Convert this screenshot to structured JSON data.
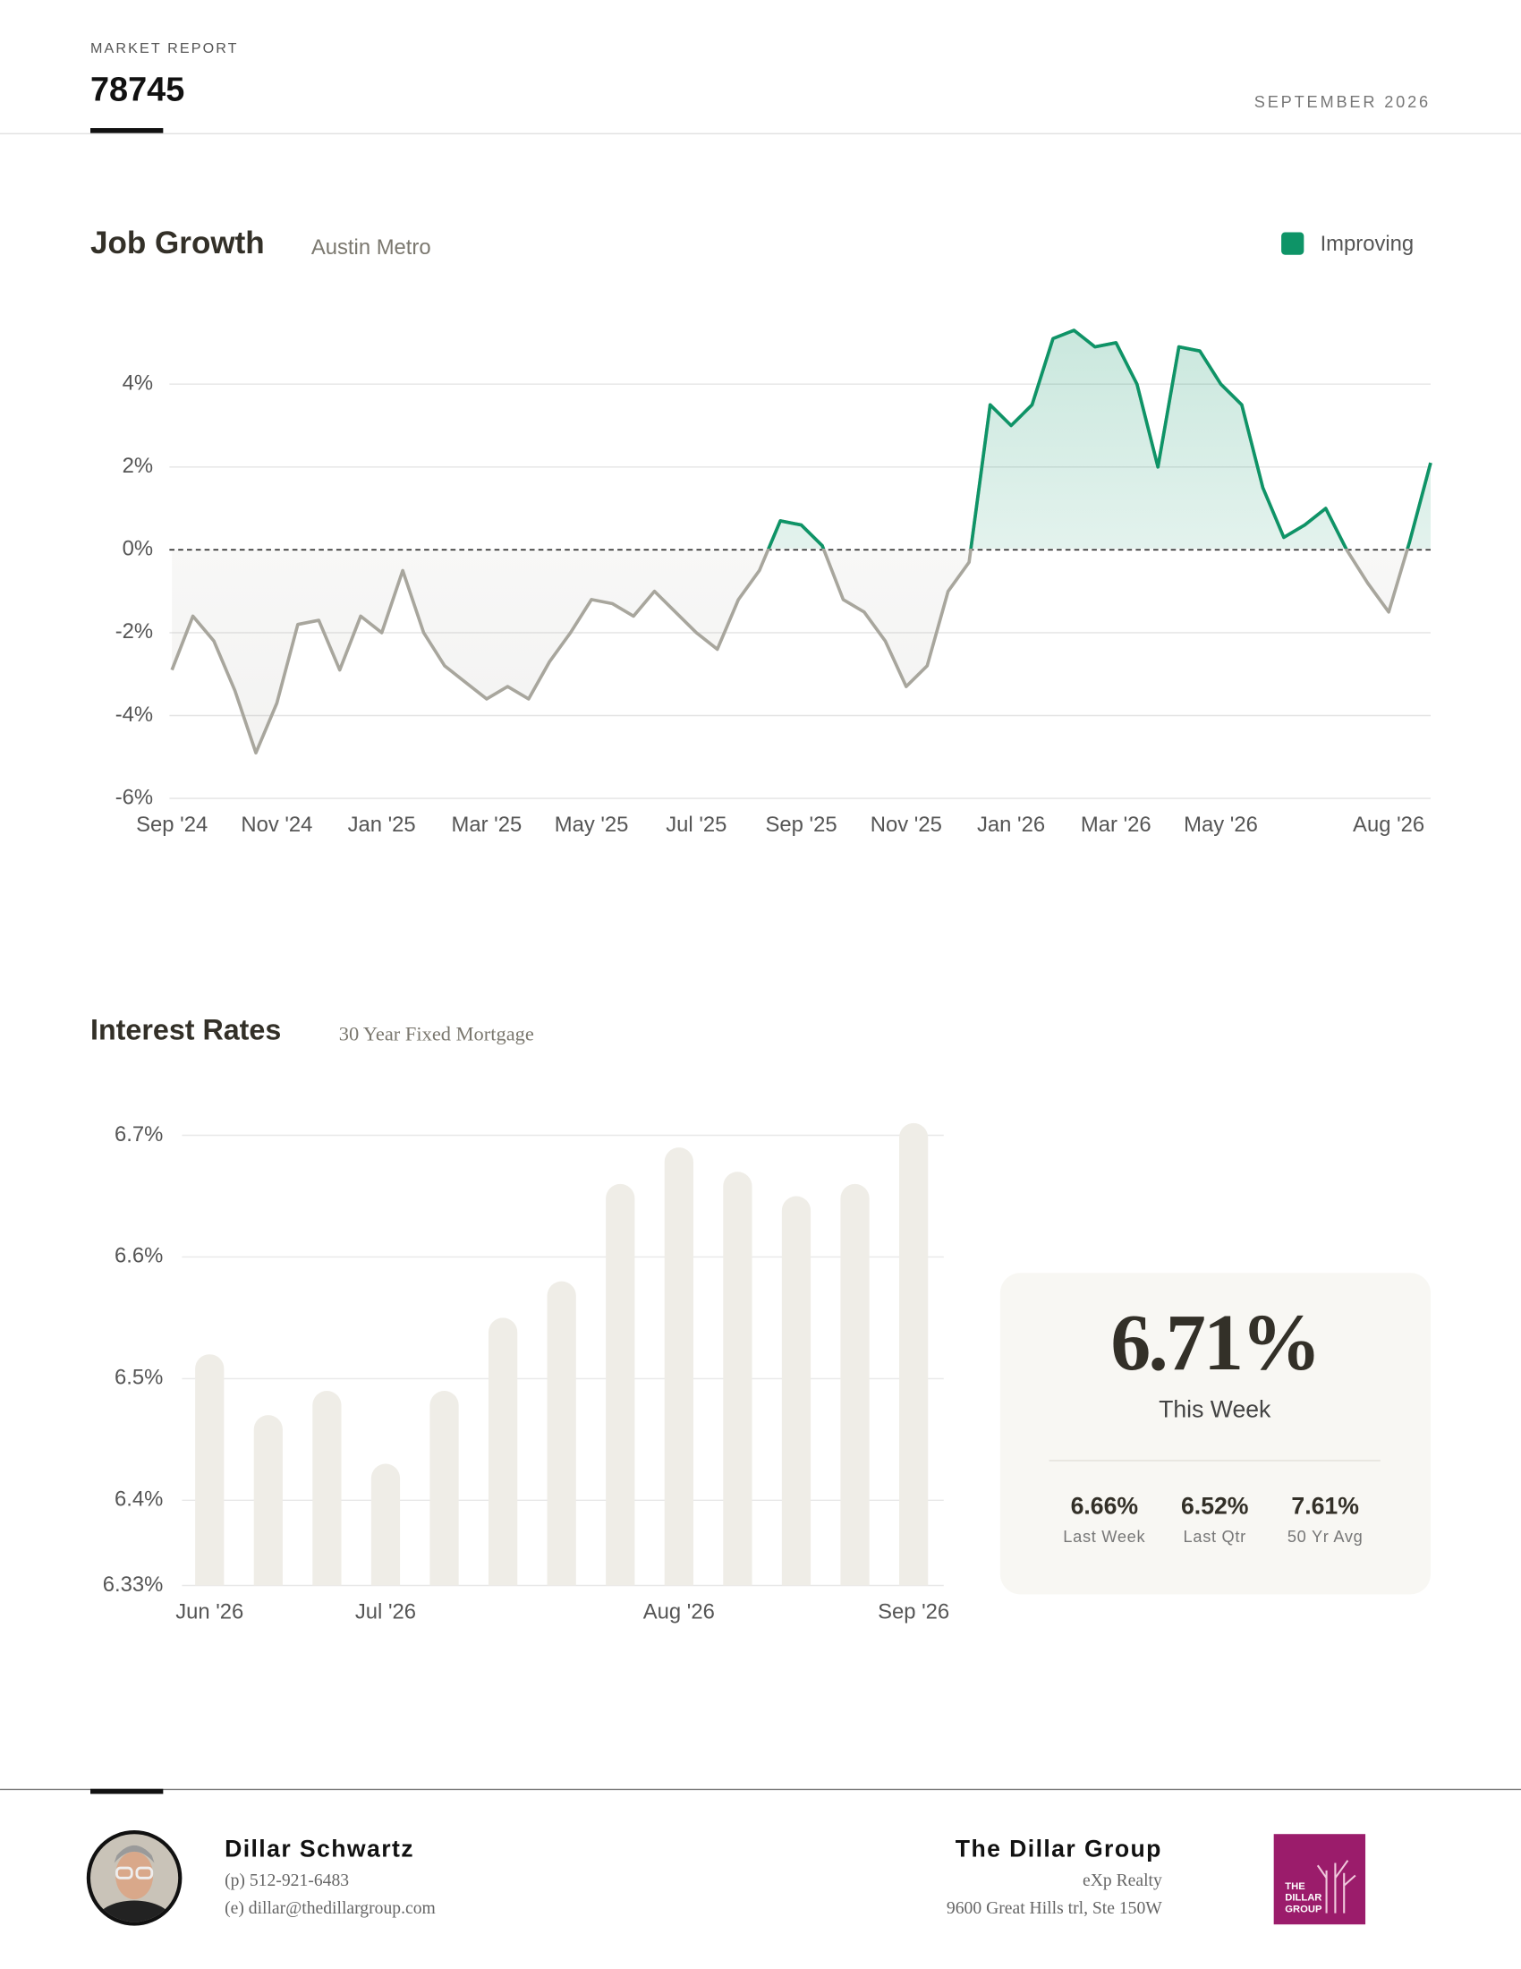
{
  "header": {
    "kicker": "MARKET REPORT",
    "title": "78745",
    "date": "SEPTEMBER 2026"
  },
  "chart_data": [
    {
      "type": "line",
      "title": "Job Growth",
      "subtitle": "Austin Metro",
      "categories": [
        "Sep '24",
        null,
        null,
        null,
        null,
        "Nov '24",
        null,
        null,
        null,
        null,
        "Jan '25",
        null,
        null,
        null,
        null,
        "Mar '25",
        null,
        null,
        null,
        null,
        "May '25",
        null,
        null,
        null,
        null,
        "Jul '25",
        null,
        null,
        null,
        null,
        "Sep '25",
        null,
        null,
        null,
        null,
        "Nov '25",
        null,
        null,
        null,
        null,
        "Jan '26",
        null,
        null,
        null,
        null,
        "Mar '26",
        null,
        null,
        null,
        null,
        "May '26",
        null,
        null,
        null,
        null,
        null,
        null,
        null,
        "Aug '26",
        null,
        null
      ],
      "series": [
        {
          "name": "Improving",
          "color": "#0e9467",
          "values": [
            -2.9,
            -1.6,
            -2.2,
            -3.4,
            -4.9,
            -3.7,
            -1.8,
            -1.7,
            -2.9,
            -1.6,
            -2.0,
            -0.5,
            -2.0,
            -2.8,
            -3.2,
            -3.6,
            -3.3,
            -3.6,
            -2.7,
            -2.0,
            -1.2,
            -1.3,
            -1.6,
            -1.0,
            -1.5,
            -2.0,
            -2.4,
            -1.2,
            -0.5,
            0.7,
            0.6,
            0.1,
            -1.2,
            -1.5,
            -2.2,
            -3.3,
            -2.8,
            -1.0,
            -0.3,
            3.5,
            3.0,
            3.5,
            5.1,
            5.3,
            4.9,
            5.0,
            4.0,
            2.0,
            4.9,
            4.8,
            4.0,
            3.5,
            1.5,
            0.3,
            0.6,
            1.0,
            0.0,
            -0.8,
            -1.5,
            0.2,
            2.1
          ]
        }
      ],
      "base_color": "#a8a69d",
      "ylim": [
        -6,
        6
      ],
      "yticks": [
        {
          "value": -6,
          "label": "-6%"
        },
        {
          "value": -4,
          "label": "-4%"
        },
        {
          "value": -2,
          "label": "-2%"
        },
        {
          "value": 0,
          "label": "0%"
        },
        {
          "value": 2,
          "label": "2%"
        },
        {
          "value": 4,
          "label": "4%"
        }
      ],
      "grid": true,
      "legend": "upper right"
    },
    {
      "type": "bar",
      "title": "Interest Rates",
      "subtitle": "30 Year Fixed Mortgage",
      "categories": [
        "Jun '26",
        null,
        null,
        "Jul '26",
        null,
        null,
        null,
        null,
        "Aug '26",
        null,
        null,
        null,
        "Sep '26"
      ],
      "values": [
        6.52,
        6.47,
        6.49,
        6.43,
        6.49,
        6.55,
        6.58,
        6.66,
        6.69,
        6.67,
        6.65,
        6.66,
        6.71
      ],
      "color": "#efede7",
      "ylim": [
        6.33,
        6.72
      ],
      "yticks": [
        {
          "value": 6.33,
          "label": "6.33%"
        },
        {
          "value": 6.4,
          "label": "6.4%"
        },
        {
          "value": 6.5,
          "label": "6.5%"
        },
        {
          "value": 6.6,
          "label": "6.6%"
        },
        {
          "value": 6.7,
          "label": "6.7%"
        }
      ],
      "grid": true
    }
  ],
  "stats": {
    "headline": {
      "value": "6.71%",
      "label": "This Week"
    },
    "items": [
      {
        "value": "6.66%",
        "label": "Last Week"
      },
      {
        "value": "6.52%",
        "label": "Last Qtr"
      },
      {
        "value": "7.61%",
        "label": "50 Yr Avg"
      }
    ]
  },
  "footer": {
    "agent": {
      "name": "Dillar Schwartz",
      "phone": "(p) 512-921-6483",
      "email": "(e) dillar@thedillargroup.com"
    },
    "company": {
      "name": "The Dillar Group",
      "brokerage": "eXp Realty",
      "address": "9600 Great Hills trl, Ste 150W",
      "logo": [
        "THE",
        "DILLAR",
        "GROUP"
      ]
    }
  }
}
